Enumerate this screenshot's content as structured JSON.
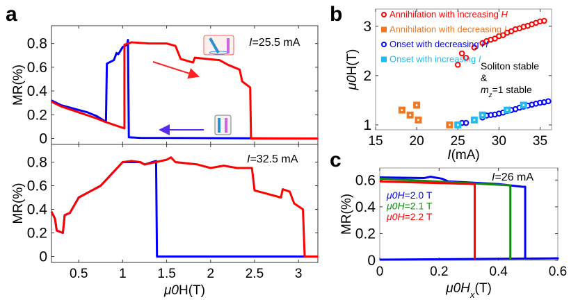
{
  "panel_labels": {
    "a": "a",
    "b": "b",
    "c": "c"
  },
  "colors": {
    "red": "#ff0000",
    "blue": "#0000ff",
    "orange": "#f07820",
    "cyan": "#22bbee",
    "green": "#118811"
  },
  "chart_data": [
    {
      "id": "a-top",
      "type": "line",
      "ylabel": "MR(%)",
      "xlabel": "",
      "annotation": "=25.5 mA",
      "annotation_italic": "I",
      "xlim": [
        0.19,
        3.22
      ],
      "ylim": [
        -0.05,
        0.95
      ],
      "xticks": [
        0.5,
        1,
        1.5,
        2,
        2.5,
        3
      ],
      "yticks": [
        0,
        0.2,
        0.4,
        0.6,
        0.8
      ],
      "ytick_labels": [
        "0",
        "0.2",
        "0.4",
        "0.6",
        "0.8"
      ],
      "series": [
        {
          "color": "blue",
          "x": [
            0.19,
            0.3,
            0.4,
            0.5,
            0.6,
            0.7,
            0.81,
            0.82,
            0.9,
            0.93,
            0.95,
            1.0,
            1.05,
            1.06,
            1.07,
            1.2,
            3.22
          ],
          "y": [
            0.32,
            0.28,
            0.26,
            0.24,
            0.22,
            0.19,
            0.14,
            0.63,
            0.66,
            0.72,
            0.71,
            0.77,
            0.79,
            0.83,
            0.01,
            0.005,
            0
          ]
        },
        {
          "color": "red",
          "x": [
            0.19,
            0.3,
            0.5,
            0.7,
            0.8,
            1.02,
            1.02,
            1.1,
            1.3,
            1.5,
            1.6,
            1.66,
            1.8,
            1.82,
            2.1,
            2.2,
            2.33,
            2.36,
            2.45,
            2.46,
            3.22
          ],
          "y": [
            0.31,
            0.27,
            0.22,
            0.17,
            0.14,
            0.085,
            0.79,
            0.81,
            0.8,
            0.8,
            0.78,
            0.67,
            0.64,
            0.68,
            0.66,
            0.62,
            0.58,
            0.48,
            0.43,
            0,
            0
          ]
        }
      ]
    },
    {
      "id": "a-bottom",
      "type": "line",
      "ylabel": "MR(%)",
      "xlabel": "H(T)",
      "xlabel_italic": "μ0",
      "annotation": "=32.5 mA",
      "annotation_italic": "I",
      "xlim": [
        0.19,
        3.22
      ],
      "ylim": [
        -0.05,
        0.95
      ],
      "xticks": [
        0.5,
        1,
        1.5,
        2,
        2.5,
        3
      ],
      "xtick_labels": [
        "0.5",
        "1",
        "1.5",
        "2",
        "2.5",
        "3"
      ],
      "yticks": [
        0,
        0.2,
        0.4,
        0.6,
        0.8
      ],
      "ytick_labels": [
        "0",
        "0.2",
        "0.4",
        "0.6",
        "0.8"
      ],
      "series": [
        {
          "color": "blue",
          "x": [
            0.19,
            0.23,
            0.25,
            0.32,
            0.34,
            0.4,
            0.5,
            0.75,
            1.0,
            1.2,
            1.25,
            1.38,
            1.39,
            3.22
          ],
          "y": [
            0.38,
            0.32,
            0.22,
            0.2,
            0.35,
            0.37,
            0.5,
            0.6,
            0.8,
            0.8,
            0.78,
            0.81,
            0,
            0
          ]
        },
        {
          "color": "red",
          "x": [
            0.19,
            0.23,
            0.25,
            0.32,
            0.34,
            0.4,
            0.5,
            0.75,
            1.0,
            1.1,
            1.2,
            1.25,
            1.5,
            1.55,
            1.6,
            1.85,
            2.0,
            2.15,
            2.3,
            2.47,
            2.5,
            2.8,
            2.82,
            2.9,
            2.95,
            3.05,
            3.07,
            3.22
          ],
          "y": [
            0.38,
            0.32,
            0.22,
            0.2,
            0.35,
            0.37,
            0.5,
            0.6,
            0.8,
            0.81,
            0.8,
            0.78,
            0.82,
            0.84,
            0.8,
            0.78,
            0.75,
            0.77,
            0.75,
            0.75,
            0.56,
            0.5,
            0.57,
            0.55,
            0.45,
            0.4,
            0,
            0
          ]
        }
      ]
    },
    {
      "id": "b",
      "type": "scatter",
      "ylabel": "H(T)",
      "ylabel_italic": "μ0",
      "xlabel": "(mA)",
      "xlabel_italic": "I",
      "xlim": [
        15,
        36.4
      ],
      "ylim": [
        0.9,
        3.35
      ],
      "xticks": [
        15,
        20,
        25,
        30,
        35
      ],
      "xtick_labels": [
        "15",
        "20",
        "25",
        "30",
        "35"
      ],
      "yticks": [
        1,
        2,
        3
      ],
      "ytick_labels": [
        "1",
        "2",
        "3"
      ],
      "annotation_lines": [
        "Soliton stable",
        "&",
        "=1 stable"
      ],
      "annotation_italic": "m",
      "annotation_sub": "z",
      "legend_position": "top-left",
      "series": [
        {
          "name": "Annihilation with increasing ",
          "name_italic": "H",
          "color": "red",
          "marker": "circle",
          "x": [
            25,
            25.5,
            26,
            27,
            28,
            28.5,
            29,
            29.5,
            30,
            30.5,
            31,
            31.5,
            32,
            32.5,
            33,
            33.5,
            34,
            34.5,
            35,
            35.5
          ],
          "y": [
            2.22,
            2.45,
            2.36,
            2.57,
            2.66,
            2.7,
            2.73,
            2.75,
            2.8,
            2.82,
            2.87,
            2.9,
            2.94,
            2.96,
            2.99,
            3.01,
            3.04,
            3.07,
            3.1,
            3.11
          ]
        },
        {
          "name": "Annihilation with decreasing ",
          "name_italic": "I",
          "color": "orange",
          "marker": "square",
          "x": [
            18.2,
            19.2,
            20,
            20.2,
            24
          ],
          "y": [
            1.3,
            1.2,
            1.4,
            1.1,
            1.0
          ]
        },
        {
          "name": "Onset with decreasing ",
          "name_italic": "H",
          "color": "blue",
          "marker": "circle",
          "x": [
            25,
            25.5,
            26,
            27,
            28,
            28.5,
            29,
            29.5,
            30,
            30.5,
            31,
            31.5,
            32,
            32.5,
            33,
            33.5,
            34,
            34.5,
            35,
            35.5,
            36
          ],
          "y": [
            1.0,
            1.04,
            1.04,
            1.1,
            1.15,
            1.19,
            1.2,
            1.21,
            1.23,
            1.25,
            1.28,
            1.3,
            1.32,
            1.35,
            1.37,
            1.39,
            1.41,
            1.43,
            1.45,
            1.46,
            1.48
          ]
        },
        {
          "name": "Onset with increasing ",
          "name_italic": "I",
          "color": "cyan",
          "marker": "square",
          "x": [
            25,
            27,
            28,
            31,
            33
          ],
          "y": [
            1.0,
            1.1,
            1.2,
            1.3,
            1.4
          ]
        }
      ]
    },
    {
      "id": "c",
      "type": "line",
      "ylabel": "MR(%)",
      "xlabel": "(T)",
      "xlabel_italic": "μ0H",
      "xlabel_sub": "x",
      "annotation": "=26 mA",
      "annotation_italic": "I",
      "xlim": [
        0,
        0.6
      ],
      "ylim": [
        0,
        0.69
      ],
      "xticks": [
        0,
        0.2,
        0.4,
        0.6
      ],
      "xtick_labels": [
        "0",
        "0.2",
        "0.4",
        "0.6"
      ],
      "yticks": [
        0,
        0.2,
        0.4,
        0.6
      ],
      "ytick_labels": [
        "0",
        "0.2",
        "0.4",
        "0.6"
      ],
      "series": [
        {
          "name": "=2.0 T",
          "name_italic": "μ0H",
          "color": "blue",
          "x": [
            0,
            0.15,
            0.17,
            0.21,
            0.23,
            0.4,
            0.48,
            0.49,
            0.49,
            0.6,
            0.6,
            0
          ],
          "y": [
            0.62,
            0.615,
            0.625,
            0.61,
            0.59,
            0.57,
            0.55,
            0.55,
            0.012,
            0.015,
            0.015,
            0.005
          ]
        },
        {
          "name": "=2.1 T",
          "name_italic": "μ0H",
          "color": "green",
          "x": [
            0,
            0.1,
            0.44,
            0.44
          ],
          "y": [
            0.61,
            0.6,
            0.56,
            0.01
          ]
        },
        {
          "name": "=2.2 T",
          "name_italic": "μ0H",
          "color": "red",
          "x": [
            0,
            0.32,
            0.32
          ],
          "y": [
            0.59,
            0.57,
            0.01
          ]
        }
      ]
    }
  ]
}
